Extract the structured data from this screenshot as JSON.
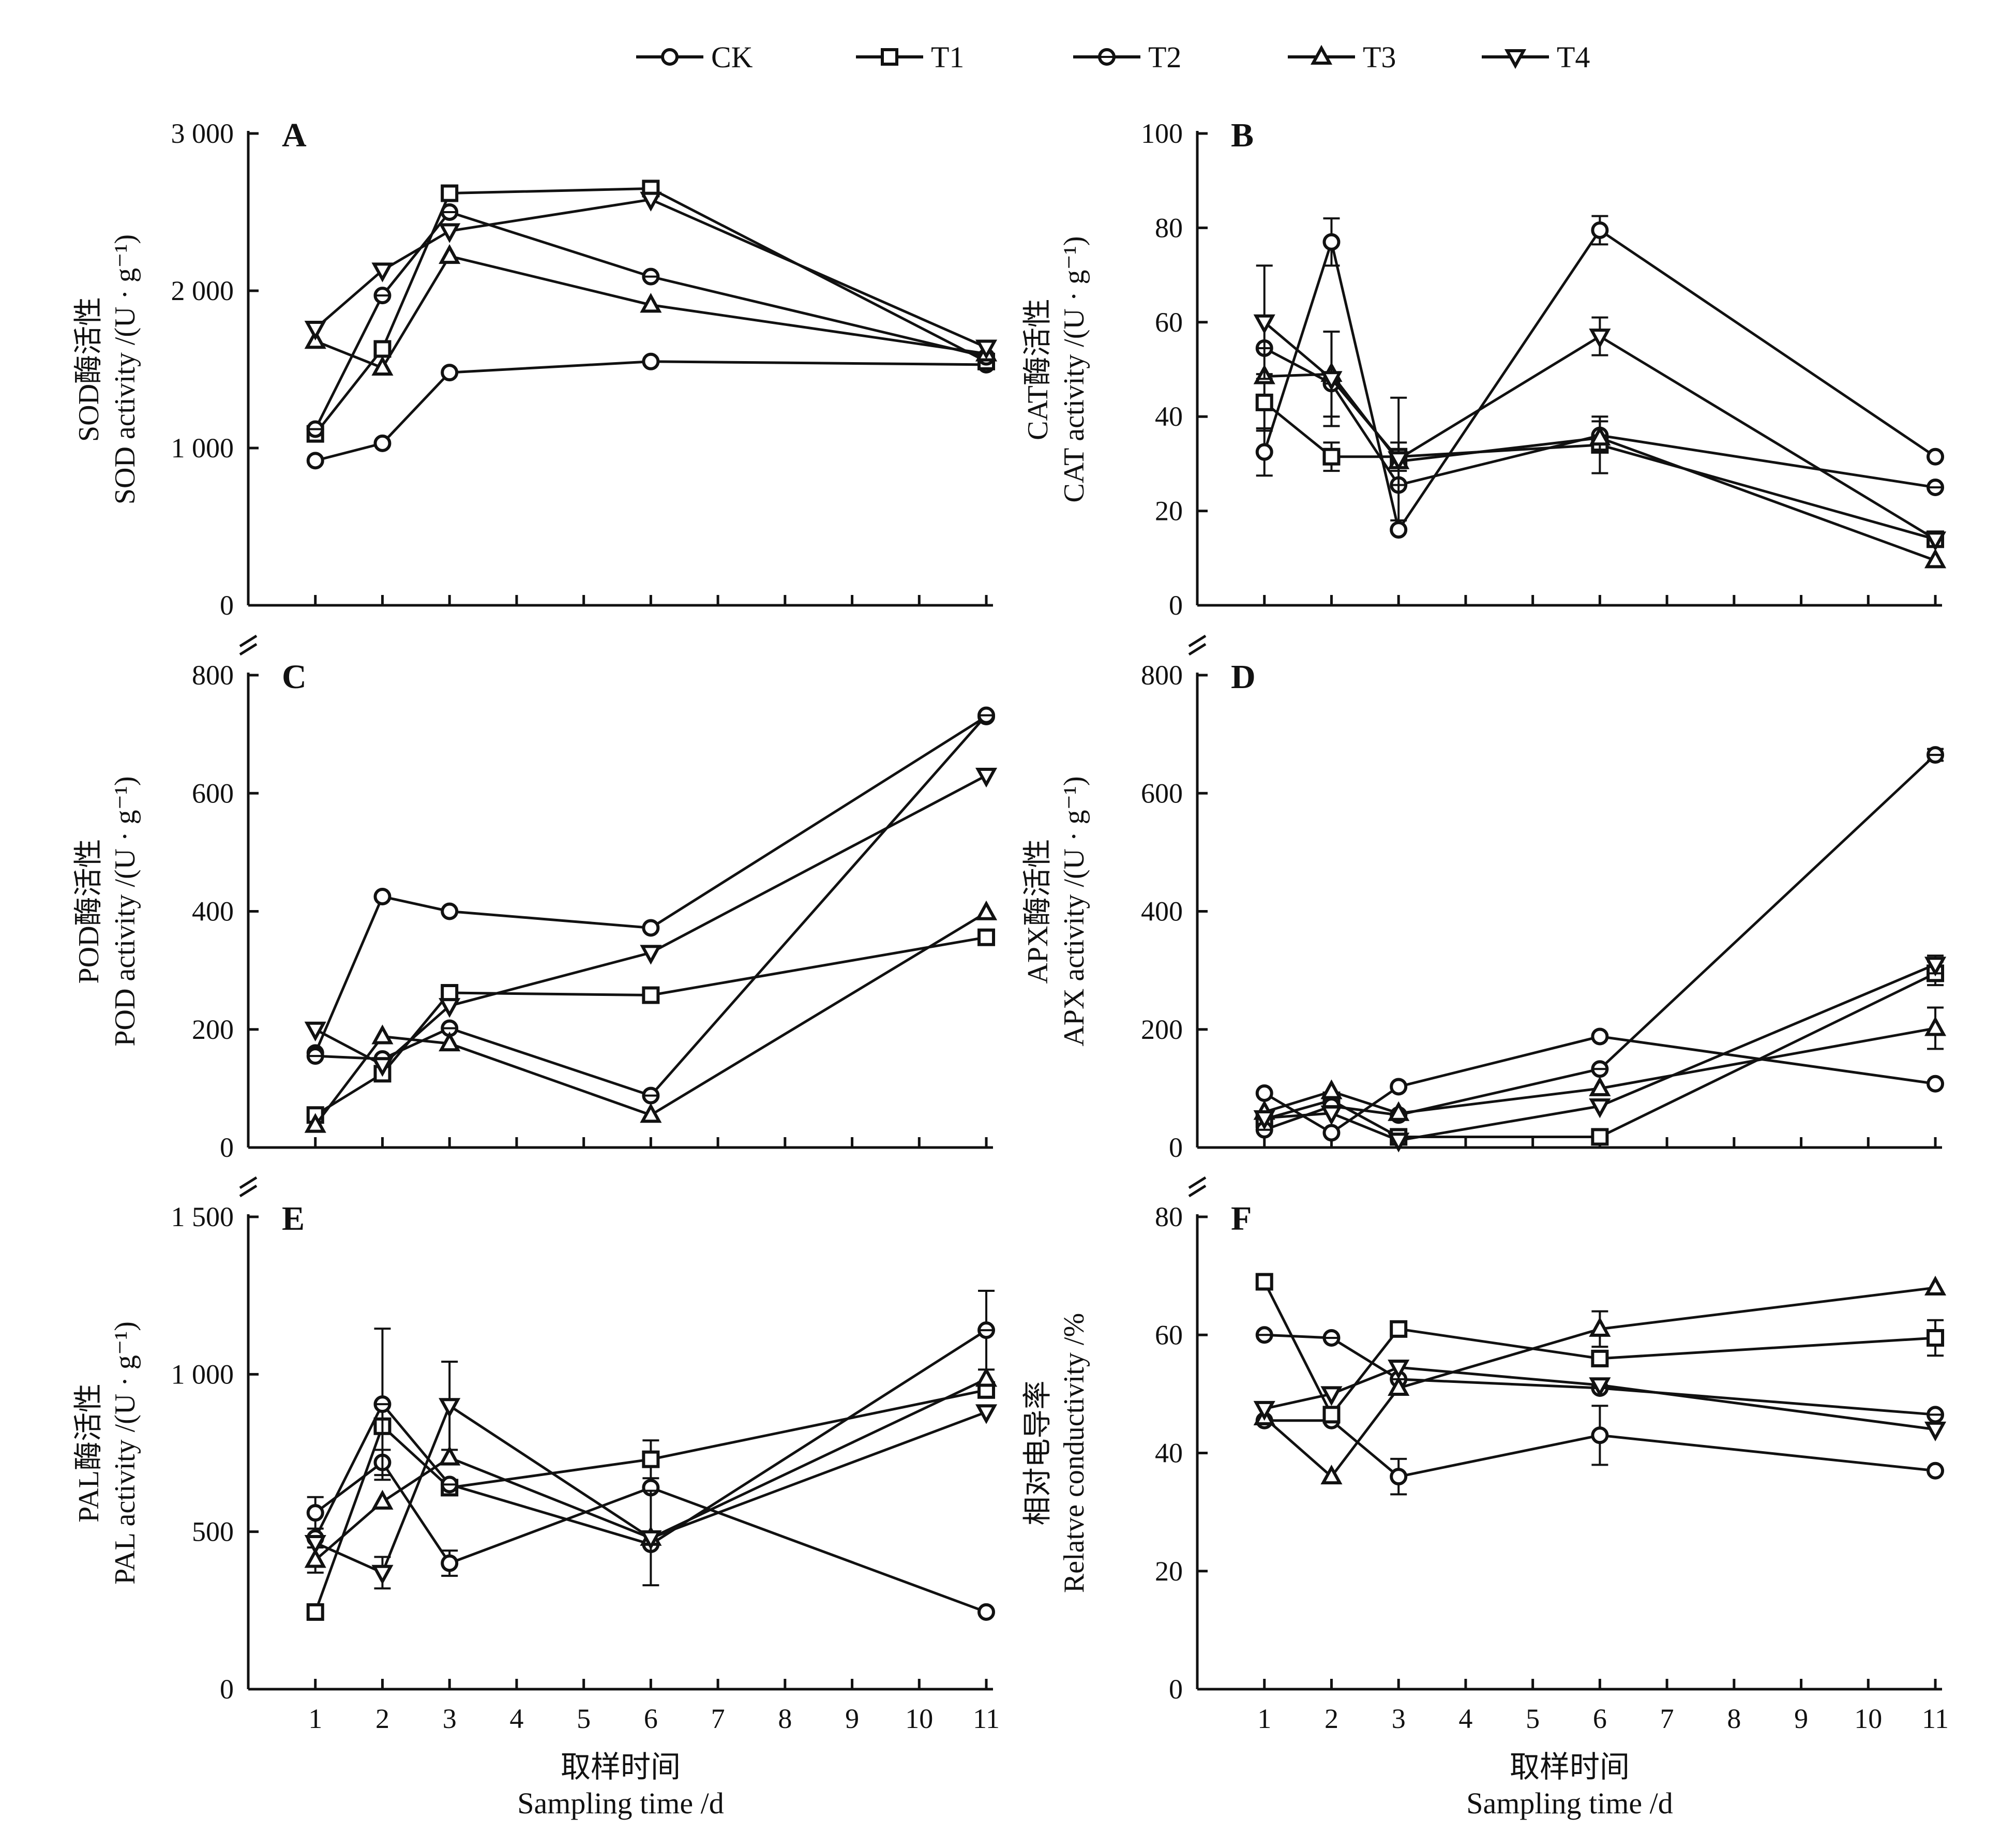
{
  "legend": [
    {
      "label": "CK",
      "marker": "circle"
    },
    {
      "label": "T1",
      "marker": "square"
    },
    {
      "label": "T2",
      "marker": "circle-line"
    },
    {
      "label": "T3",
      "marker": "triangle-up"
    },
    {
      "label": "T4",
      "marker": "triangle-down"
    }
  ],
  "x_axis": {
    "title_zh": "取样时间",
    "title_en": "Sampling time /d",
    "ticks": [
      1,
      2,
      3,
      4,
      5,
      6,
      7,
      8,
      9,
      10,
      11
    ]
  },
  "chart_data": [
    {
      "type": "line",
      "panel": "A",
      "ylabel_zh": "SOD酶活性",
      "ylabel_en": "SOD activity /(U · g⁻¹)",
      "ylim": [
        0,
        3000
      ],
      "yticks": [
        0,
        1000,
        2000,
        3000
      ],
      "ytick_labels": [
        "0",
        "1 000",
        "2 000",
        "3 000"
      ],
      "x": [
        1,
        2,
        3,
        6,
        11
      ],
      "series": [
        {
          "name": "CK",
          "values": [
            920,
            1030,
            1480,
            1550,
            1530
          ],
          "err": [
            0,
            0,
            0,
            0,
            0
          ]
        },
        {
          "name": "T1",
          "values": [
            1090,
            1630,
            2620,
            2650,
            1550
          ],
          "err": [
            0,
            0,
            0,
            0,
            0
          ]
        },
        {
          "name": "T2",
          "values": [
            1120,
            1970,
            2500,
            2090,
            1580
          ],
          "err": [
            0,
            0,
            0,
            0,
            0
          ]
        },
        {
          "name": "T3",
          "values": [
            1680,
            1510,
            2220,
            1910,
            1600
          ],
          "err": [
            0,
            0,
            0,
            0,
            0
          ]
        },
        {
          "name": "T4",
          "values": [
            1760,
            2130,
            2380,
            2580,
            1640
          ],
          "err": [
            0,
            0,
            0,
            0,
            0
          ]
        }
      ]
    },
    {
      "type": "line",
      "panel": "B",
      "ylabel_zh": "CAT酶活性",
      "ylabel_en": "CAT activity /(U · g⁻¹)",
      "ylim": [
        0,
        100
      ],
      "yticks": [
        0,
        20,
        40,
        60,
        80,
        100
      ],
      "ytick_labels": [
        "0",
        "20",
        "40",
        "60",
        "80",
        "100"
      ],
      "x": [
        1,
        2,
        3,
        6,
        11
      ],
      "series": [
        {
          "name": "CK",
          "values": [
            32.5,
            77,
            16,
            79.5,
            31.5
          ],
          "err": [
            5,
            5,
            0,
            3,
            0
          ]
        },
        {
          "name": "T1",
          "values": [
            43,
            31.5,
            31.5,
            34,
            14
          ],
          "err": [
            6,
            3,
            3,
            6,
            0
          ]
        },
        {
          "name": "T2",
          "values": [
            54.5,
            47,
            25.5,
            36,
            25
          ],
          "err": [
            0,
            0,
            0,
            3,
            0
          ]
        },
        {
          "name": "T3",
          "values": [
            48.5,
            49,
            30.5,
            35.5,
            9.5
          ],
          "err": [
            0,
            9,
            0,
            0,
            0
          ]
        },
        {
          "name": "T4",
          "values": [
            60,
            48,
            31,
            57,
            14
          ],
          "err": [
            12,
            10,
            13,
            4,
            0
          ]
        }
      ]
    },
    {
      "type": "line",
      "panel": "C",
      "ylabel_zh": "POD酶活性",
      "ylabel_en": "POD activity /(U · g⁻¹)",
      "ylim": [
        0,
        800
      ],
      "yticks": [
        0,
        200,
        400,
        600,
        800
      ],
      "ytick_labels": [
        "0",
        "200",
        "400",
        "600",
        "800"
      ],
      "x": [
        1,
        2,
        3,
        6,
        11
      ],
      "series": [
        {
          "name": "CK",
          "values": [
            160,
            425,
            400,
            372,
            730
          ],
          "err": [
            0,
            0,
            0,
            0,
            0
          ]
        },
        {
          "name": "T1",
          "values": [
            55,
            125,
            262,
            258,
            356
          ],
          "err": [
            0,
            0,
            0,
            0,
            0
          ]
        },
        {
          "name": "T2",
          "values": [
            155,
            150,
            202,
            88,
            732
          ],
          "err": [
            0,
            0,
            0,
            0,
            0
          ]
        },
        {
          "name": "T3",
          "values": [
            38,
            188,
            176,
            55,
            398
          ],
          "err": [
            0,
            0,
            0,
            0,
            0
          ]
        },
        {
          "name": "T4",
          "values": [
            200,
            140,
            240,
            330,
            630
          ],
          "err": [
            0,
            0,
            0,
            0,
            0
          ]
        }
      ]
    },
    {
      "type": "line",
      "panel": "D",
      "ylabel_zh": "APX酶活性",
      "ylabel_en": "APX activity /(U · g⁻¹)",
      "ylim": [
        0,
        800
      ],
      "yticks": [
        0,
        200,
        400,
        600,
        800
      ],
      "ytick_labels": [
        "0",
        "200",
        "400",
        "600",
        "800"
      ],
      "x": [
        1,
        2,
        3,
        6,
        11
      ],
      "series": [
        {
          "name": "CK",
          "values": [
            92,
            25,
            103,
            188,
            108
          ],
          "err": [
            0,
            0,
            0,
            0,
            0
          ]
        },
        {
          "name": "T1",
          "values": [
            48,
            80,
            18,
            18,
            295
          ],
          "err": [
            0,
            0,
            0,
            0,
            20
          ]
        },
        {
          "name": "T2",
          "values": [
            30,
            70,
            55,
            133,
            665
          ],
          "err": [
            0,
            0,
            0,
            0,
            10
          ]
        },
        {
          "name": "T3",
          "values": [
            60,
            95,
            58,
            100,
            202
          ],
          "err": [
            0,
            0,
            0,
            0,
            35
          ]
        },
        {
          "name": "T4",
          "values": [
            50,
            58,
            12,
            70,
            310
          ],
          "err": [
            0,
            0,
            0,
            0,
            15
          ]
        }
      ]
    },
    {
      "type": "line",
      "panel": "E",
      "ylabel_zh": "PAL酶活性",
      "ylabel_en": "PAL activity /(U · g⁻¹)",
      "ylim": [
        0,
        1500
      ],
      "yticks": [
        0,
        500,
        1000,
        1500
      ],
      "ytick_labels": [
        "0",
        "500",
        "1 000",
        "1 500"
      ],
      "x": [
        1,
        2,
        3,
        6,
        11
      ],
      "series": [
        {
          "name": "CK",
          "values": [
            560,
            720,
            400,
            640,
            245
          ],
          "err": [
            50,
            40,
            40,
            0,
            0
          ]
        },
        {
          "name": "T1",
          "values": [
            245,
            835,
            640,
            730,
            950
          ],
          "err": [
            0,
            0,
            0,
            60,
            0
          ]
        },
        {
          "name": "T2",
          "values": [
            480,
            905,
            650,
            460,
            1140
          ],
          "err": [
            0,
            240,
            0,
            0,
            125
          ]
        },
        {
          "name": "T3",
          "values": [
            410,
            595,
            735,
            480,
            985
          ],
          "err": [
            40,
            0,
            0,
            150,
            0
          ]
        },
        {
          "name": "T4",
          "values": [
            465,
            370,
            900,
            480,
            880
          ],
          "err": [
            0,
            50,
            140,
            0,
            0
          ]
        }
      ]
    },
    {
      "type": "line",
      "panel": "F",
      "ylabel_zh": "相对电导率",
      "ylabel_en": "Relatve conductivity /%",
      "ylim": [
        0,
        80
      ],
      "yticks": [
        0,
        20,
        40,
        60,
        80
      ],
      "ytick_labels": [
        "0",
        "20",
        "40",
        "60",
        "80"
      ],
      "x": [
        1,
        2,
        3,
        6,
        11
      ],
      "series": [
        {
          "name": "CK",
          "values": [
            45.5,
            45.5,
            36,
            43,
            37
          ],
          "err": [
            0,
            0,
            3,
            5,
            0
          ]
        },
        {
          "name": "T1",
          "values": [
            69,
            46.5,
            61,
            56,
            59.5
          ],
          "err": [
            0,
            0,
            0,
            0,
            3
          ]
        },
        {
          "name": "T2",
          "values": [
            60,
            59.5,
            52.5,
            51,
            46.5
          ],
          "err": [
            0,
            0,
            0,
            0,
            0
          ]
        },
        {
          "name": "T3",
          "values": [
            46,
            36,
            51,
            61,
            68
          ],
          "err": [
            0,
            0,
            0,
            3,
            0
          ]
        },
        {
          "name": "T4",
          "values": [
            47.5,
            50,
            54.5,
            51.5,
            44
          ],
          "err": [
            0,
            0,
            0,
            0,
            0
          ]
        }
      ]
    }
  ]
}
